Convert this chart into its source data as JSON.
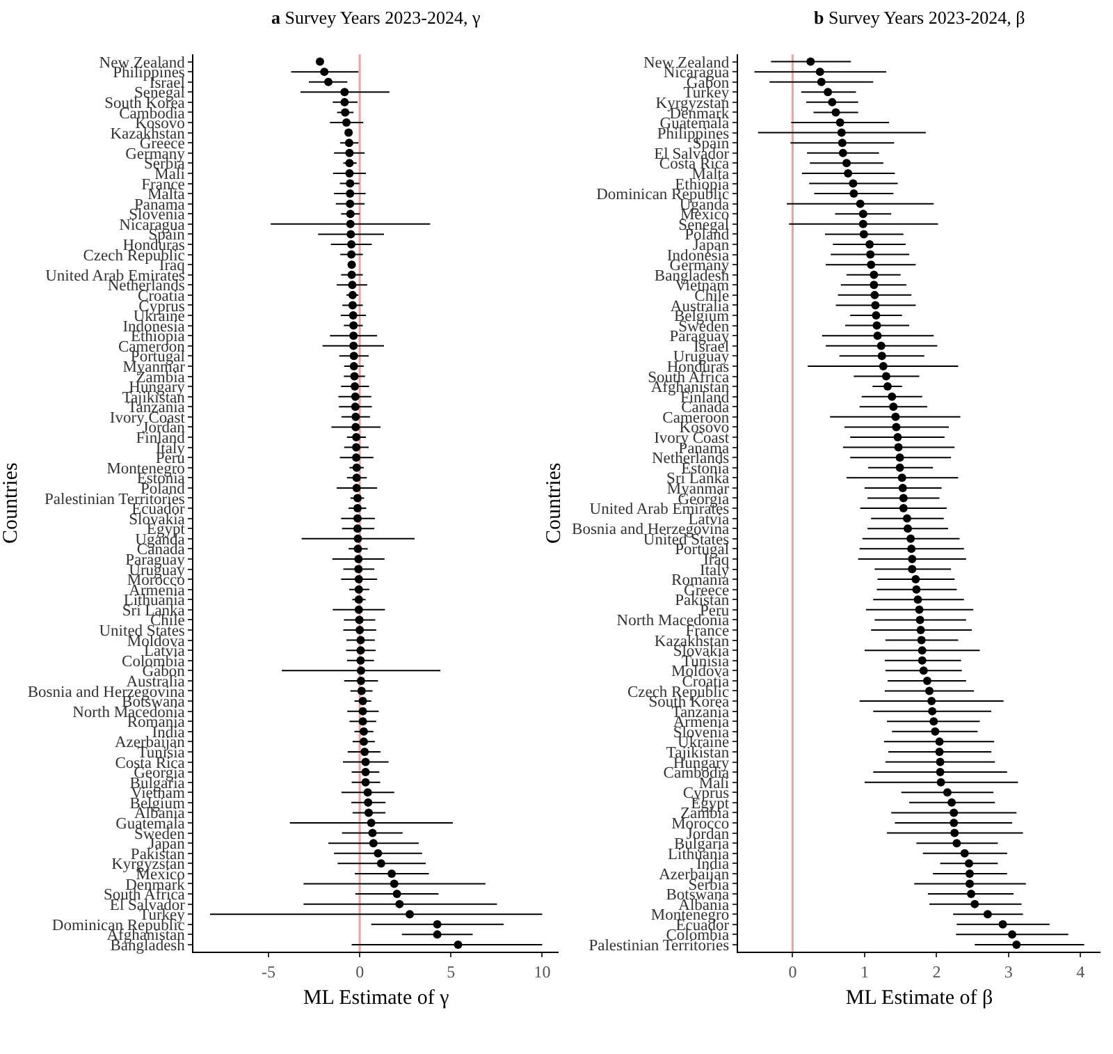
{
  "chart_data": [
    {
      "type": "scatter",
      "orientation": "horizontal",
      "title": "a Survey Years 2023-2024, γ",
      "xlabel": "ML Estimate of γ",
      "ylabel": "Countries",
      "marker": "circle",
      "grid": false,
      "categories": [
        "New Zealand",
        "Philippines",
        "Israel",
        "Senegal",
        "South Korea",
        "Cambodia",
        "Kosovo",
        "Kazakhstan",
        "Greece",
        "Germany",
        "Serbia",
        "Mali",
        "France",
        "Malta",
        "Panama",
        "Slovenia",
        "Nicaragua",
        "Spain",
        "Honduras",
        "Czech Republic",
        "Iraq",
        "United Arab Emirates",
        "Netherlands",
        "Croatia",
        "Cyprus",
        "Ukraine",
        "Indonesia",
        "Ethiopia",
        "Cameroon",
        "Portugal",
        "Myanmar",
        "Zambia",
        "Hungary",
        "Tajikistan",
        "Tanzania",
        "Ivory Coast",
        "Jordan",
        "Finland",
        "Italy",
        "Peru",
        "Montenegro",
        "Estonia",
        "Poland",
        "Palestinian Territories",
        "Ecuador",
        "Slovakia",
        "Egypt",
        "Uganda",
        "Canada",
        "Paraguay",
        "Uruguay",
        "Morocco",
        "Armenia",
        "Lithuania",
        "Sri Lanka",
        "Chile",
        "United States",
        "Moldova",
        "Latvia",
        "Colombia",
        "Gabon",
        "Australia",
        "Bosnia and Herzegovina",
        "Botswana",
        "North Macedonia",
        "Romania",
        "India",
        "Azerbaijan",
        "Tunisia",
        "Costa Rica",
        "Georgia",
        "Bulgaria",
        "Vietnam",
        "Belgium",
        "Albania",
        "Guatemala",
        "Sweden",
        "Japan",
        "Pakistan",
        "Kyrgyzstan",
        "Mexico",
        "Denmark",
        "South Africa",
        "El Salvador",
        "Turkey",
        "Dominican Republic",
        "Afghanistan",
        "Bangladesh"
      ],
      "series": [
        {
          "color": "#000000",
          "values": [
            -2.18,
            -1.94,
            -1.72,
            -0.83,
            -0.83,
            -0.8,
            -0.73,
            -0.61,
            -0.58,
            -0.56,
            -0.56,
            -0.56,
            -0.53,
            -0.53,
            -0.53,
            -0.51,
            -0.51,
            -0.49,
            -0.46,
            -0.46,
            -0.44,
            -0.44,
            -0.41,
            -0.39,
            -0.39,
            -0.36,
            -0.34,
            -0.34,
            -0.34,
            -0.32,
            -0.32,
            -0.29,
            -0.27,
            -0.24,
            -0.24,
            -0.22,
            -0.22,
            -0.19,
            -0.19,
            -0.19,
            -0.17,
            -0.17,
            -0.17,
            -0.12,
            -0.12,
            -0.12,
            -0.12,
            -0.1,
            -0.1,
            -0.07,
            -0.07,
            -0.05,
            -0.05,
            -0.05,
            -0.05,
            -0.02,
            0,
            0.05,
            0.05,
            0.05,
            0.07,
            0.07,
            0.1,
            0.17,
            0.17,
            0.17,
            0.22,
            0.22,
            0.27,
            0.32,
            0.32,
            0.32,
            0.44,
            0.46,
            0.49,
            0.63,
            0.7,
            0.75,
            1.0,
            1.17,
            1.75,
            1.89,
            2.04,
            2.18,
            2.74,
            4.25,
            4.25,
            5.39
          ],
          "errors": [
            null,
            [
              -3.76,
              -0.07
            ],
            [
              -2.79,
              -0.68
            ],
            [
              -3.25,
              1.63
            ],
            [
              -1.48,
              -0.12
            ],
            [
              -1.24,
              -0.34
            ],
            [
              -1.63,
              0.19
            ],
            null,
            [
              -1.07,
              -0.07
            ],
            [
              -1.41,
              0.27
            ],
            [
              -0.9,
              -0.17
            ],
            [
              -1.46,
              0.34
            ],
            [
              -1.09,
              -0.02
            ],
            [
              -1.41,
              0.32
            ],
            [
              -1.31,
              0.27
            ],
            [
              -1.02,
              0
            ],
            [
              -4.88,
              3.86
            ],
            [
              -2.28,
              1.33
            ],
            [
              -1.58,
              0.66
            ],
            [
              -1.07,
              0.17
            ],
            [
              -0.65,
              -0.24
            ],
            [
              -1.02,
              0.17
            ],
            [
              -1.26,
              0.41
            ],
            [
              -0.73,
              -0.07
            ],
            [
              -0.95,
              0.17
            ],
            [
              -1.04,
              0.34
            ],
            [
              -0.87,
              0.17
            ],
            [
              -1.63,
              0.95
            ],
            [
              -2.04,
              1.33
            ],
            [
              -1.12,
              0.49
            ],
            [
              -0.85,
              0.22
            ],
            [
              -0.87,
              0.29
            ],
            [
              -1.02,
              0.51
            ],
            [
              -1.17,
              0.63
            ],
            [
              -1.14,
              0.66
            ],
            [
              -1.0,
              0.56
            ],
            [
              -1.55,
              1.14
            ],
            [
              -0.7,
              0.34
            ],
            [
              -0.85,
              0.49
            ],
            [
              -1.09,
              0.75
            ],
            [
              -0.56,
              0.22
            ],
            [
              -0.7,
              0.39
            ],
            [
              -1.26,
              0.95
            ],
            [
              -0.51,
              0.24
            ],
            [
              -0.61,
              0.36
            ],
            [
              -1.02,
              0.83
            ],
            [
              -0.97,
              0.8
            ],
            [
              -3.18,
              3.01
            ],
            [
              -0.61,
              0.44
            ],
            [
              -1.5,
              1.36
            ],
            [
              -0.9,
              0.8
            ],
            [
              -1.02,
              0.95
            ],
            [
              -0.58,
              0.53
            ],
            [
              -0.41,
              0.32
            ],
            [
              -1.48,
              1.38
            ],
            [
              -0.87,
              0.85
            ],
            [
              -0.9,
              0.9
            ],
            [
              -0.73,
              0.83
            ],
            [
              -0.75,
              0.87
            ],
            [
              -0.7,
              0.78
            ],
            [
              -4.27,
              4.42
            ],
            [
              -0.85,
              1.0
            ],
            [
              -0.51,
              0.7
            ],
            [
              -0.29,
              0.63
            ],
            [
              -0.68,
              1.04
            ],
            [
              -0.56,
              0.9
            ],
            [
              -0.29,
              0.75
            ],
            [
              -0.39,
              0.83
            ],
            [
              -0.66,
              1.14
            ],
            [
              -0.92,
              1.58
            ],
            [
              -0.44,
              1.07
            ],
            [
              -0.44,
              1.12
            ],
            [
              -1.0,
              1.89
            ],
            [
              -0.46,
              1.41
            ],
            [
              -0.39,
              1.41
            ],
            [
              -3.83,
              5.1
            ],
            [
              -0.97,
              2.35
            ],
            [
              -1.72,
              3.23
            ],
            [
              -1.41,
              3.42
            ],
            [
              -1.21,
              3.62
            ],
            [
              -0.27,
              3.79
            ],
            [
              -3.08,
              6.89
            ],
            [
              -0.24,
              4.32
            ],
            [
              -3.08,
              7.52
            ],
            [
              -8.2,
              10
            ],
            [
              0.63,
              7.89
            ],
            [
              2.31,
              6.19
            ],
            [
              -0.44,
              10
            ]
          ]
        }
      ],
      "xlim": [
        -9.1,
        10.9
      ],
      "xticks": [
        -5,
        0,
        5,
        10
      ],
      "ref_lines": [
        {
          "axis": "x",
          "value": 0,
          "color": "#f4a0a0"
        }
      ]
    },
    {
      "type": "scatter",
      "orientation": "horizontal",
      "title": "b Survey Years 2023-2024, β",
      "xlabel": "ML Estimate of β",
      "ylabel": "Countries",
      "marker": "circle",
      "grid": false,
      "categories": [
        "New Zealand",
        "Nicaragua",
        "Gabon",
        "Turkey",
        "Kyrgyzstan",
        "Denmark",
        "Guatemala",
        "Philippines",
        "Spain",
        "El Salvador",
        "Costa Rica",
        "Malta",
        "Ethiopia",
        "Dominican Republic",
        "Uganda",
        "Mexico",
        "Senegal",
        "Poland",
        "Japan",
        "Indonesia",
        "Germany",
        "Bangladesh",
        "Vietnam",
        "Chile",
        "Australia",
        "Belgium",
        "Sweden",
        "Paraguay",
        "Israel",
        "Uruguay",
        "Honduras",
        "South Africa",
        "Afghanistan",
        "Finland",
        "Canada",
        "Cameroon",
        "Kosovo",
        "Ivory Coast",
        "Panama",
        "Netherlands",
        "Estonia",
        "Sri Lanka",
        "Myanmar",
        "Georgia",
        "United Arab Emirates",
        "Latvia",
        "Bosnia and Herzegovina",
        "United States",
        "Portugal",
        "Iraq",
        "Italy",
        "Romania",
        "Greece",
        "Pakistan",
        "Peru",
        "North Macedonia",
        "France",
        "Kazakhstan",
        "Slovakia",
        "Tunisia",
        "Moldova",
        "Croatia",
        "Czech Republic",
        "South Korea",
        "Tanzania",
        "Armenia",
        "Slovenia",
        "Ukraine",
        "Tajikistan",
        "Hungary",
        "Cambodia",
        "Mali",
        "Cyprus",
        "Egypt",
        "Zambia",
        "Morocco",
        "Jordan",
        "Bulgaria",
        "Lithuania",
        "India",
        "Azerbaijan",
        "Serbia",
        "Botswana",
        "Albania",
        "Montenegro",
        "Ecuador",
        "Colombia",
        "Palestinian Territories"
      ],
      "series": [
        {
          "color": "#000000",
          "values": [
            0.25,
            0.38,
            0.4,
            0.49,
            0.55,
            0.6,
            0.66,
            0.68,
            0.69,
            0.7,
            0.75,
            0.77,
            0.84,
            0.85,
            0.94,
            0.98,
            0.98,
            0.99,
            1.07,
            1.08,
            1.09,
            1.13,
            1.13,
            1.14,
            1.15,
            1.16,
            1.17,
            1.18,
            1.23,
            1.24,
            1.26,
            1.3,
            1.32,
            1.38,
            1.4,
            1.43,
            1.44,
            1.46,
            1.47,
            1.49,
            1.49,
            1.52,
            1.53,
            1.54,
            1.54,
            1.59,
            1.6,
            1.64,
            1.65,
            1.66,
            1.66,
            1.71,
            1.72,
            1.74,
            1.76,
            1.77,
            1.78,
            1.79,
            1.8,
            1.8,
            1.82,
            1.87,
            1.9,
            1.93,
            1.94,
            1.96,
            1.98,
            2.04,
            2.04,
            2.05,
            2.05,
            2.06,
            2.15,
            2.21,
            2.24,
            2.24,
            2.25,
            2.28,
            2.39,
            2.45,
            2.46,
            2.46,
            2.48,
            2.53,
            2.71,
            2.92,
            3.05,
            3.11
          ],
          "errors": [
            [
              -0.3,
              0.81
            ],
            [
              -0.53,
              1.3
            ],
            [
              -0.32,
              1.12
            ],
            [
              0.12,
              0.88
            ],
            [
              0.19,
              0.91
            ],
            [
              0.29,
              0.91
            ],
            [
              -0.02,
              1.34
            ],
            [
              -0.48,
              1.85
            ],
            [
              -0.03,
              1.41
            ],
            [
              0.2,
              1.2
            ],
            [
              0.24,
              1.26
            ],
            [
              0.13,
              1.42
            ],
            [
              0.23,
              1.46
            ],
            [
              0.3,
              1.4
            ],
            [
              -0.08,
              1.96
            ],
            [
              0.59,
              1.37
            ],
            [
              -0.05,
              2.02
            ],
            [
              0.45,
              1.54
            ],
            [
              0.56,
              1.57
            ],
            [
              0.53,
              1.62
            ],
            [
              0.46,
              1.71
            ],
            [
              0.75,
              1.5
            ],
            [
              0.67,
              1.58
            ],
            [
              0.63,
              1.65
            ],
            [
              0.6,
              1.71
            ],
            [
              0.8,
              1.52
            ],
            [
              0.73,
              1.62
            ],
            [
              0.41,
              1.96
            ],
            [
              0.46,
              2.01
            ],
            [
              0.65,
              1.83
            ],
            [
              0.21,
              2.3
            ],
            [
              0.85,
              1.76
            ],
            [
              1.11,
              1.52
            ],
            [
              0.96,
              1.8
            ],
            [
              0.93,
              1.87
            ],
            [
              0.52,
              2.33
            ],
            [
              0.72,
              2.17
            ],
            [
              0.8,
              2.11
            ],
            [
              0.7,
              2.25
            ],
            [
              0.8,
              2.2
            ],
            [
              1.05,
              1.95
            ],
            [
              0.75,
              2.3
            ],
            [
              1.0,
              2.07
            ],
            [
              1.04,
              2.04
            ],
            [
              0.94,
              2.14
            ],
            [
              1.09,
              2.1
            ],
            [
              1.04,
              2.16
            ],
            [
              0.97,
              2.32
            ],
            [
              0.93,
              2.38
            ],
            [
              0.91,
              2.41
            ],
            [
              1.14,
              2.2
            ],
            [
              1.18,
              2.25
            ],
            [
              1.17,
              2.28
            ],
            [
              1.12,
              2.38
            ],
            [
              1.02,
              2.51
            ],
            [
              1.14,
              2.41
            ],
            [
              1.09,
              2.49
            ],
            [
              1.29,
              2.3
            ],
            [
              1.0,
              2.6
            ],
            [
              1.28,
              2.34
            ],
            [
              1.29,
              2.35
            ],
            [
              1.32,
              2.41
            ],
            [
              1.28,
              2.52
            ],
            [
              0.93,
              2.93
            ],
            [
              1.12,
              2.76
            ],
            [
              1.31,
              2.6
            ],
            [
              1.38,
              2.57
            ],
            [
              1.27,
              2.8
            ],
            [
              1.33,
              2.76
            ],
            [
              1.29,
              2.81
            ],
            [
              1.12,
              2.98
            ],
            [
              1.0,
              3.13
            ],
            [
              1.51,
              2.79
            ],
            [
              1.62,
              2.81
            ],
            [
              1.37,
              3.11
            ],
            [
              1.42,
              3.05
            ],
            [
              1.31,
              3.2
            ],
            [
              1.72,
              2.85
            ],
            [
              1.81,
              2.98
            ],
            [
              2.05,
              2.85
            ],
            [
              1.95,
              2.98
            ],
            [
              1.69,
              3.24
            ],
            [
              1.88,
              3.07
            ],
            [
              1.9,
              3.18
            ],
            [
              2.23,
              3.2
            ],
            [
              2.28,
              3.57
            ],
            [
              2.27,
              3.83
            ],
            [
              2.53,
              4.05
            ]
          ]
        }
      ],
      "xlim": [
        -0.76,
        4.28
      ],
      "xticks": [
        0,
        1,
        2,
        3,
        4
      ],
      "ref_lines": [
        {
          "axis": "x",
          "value": 0,
          "color": "#f4a0a0"
        }
      ]
    }
  ]
}
